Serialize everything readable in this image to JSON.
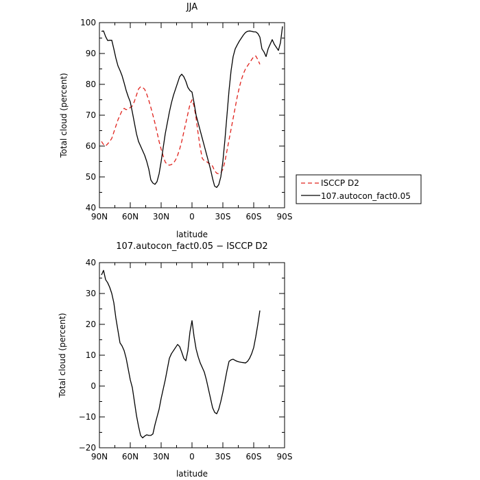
{
  "chart_data": [
    {
      "type": "line",
      "title": "JJA",
      "xlabel": "latitude",
      "ylabel": "Total cloud (percent)",
      "xlim": [
        90,
        -90
      ],
      "ylim": [
        40,
        100
      ],
      "x_tick_values": [
        90,
        60,
        30,
        0,
        -30,
        -60,
        -90
      ],
      "x_tick_labels": [
        "90N",
        "60N",
        "30N",
        "0",
        "30S",
        "60S",
        "90S"
      ],
      "y_ticks": [
        40,
        50,
        60,
        70,
        80,
        90,
        100
      ],
      "grid": false,
      "legend_position": "right",
      "series": [
        {
          "name": "ISCCP D2",
          "color": "#e0201a",
          "dash": "dashed",
          "x": [
            88,
            86,
            84,
            82,
            80,
            78,
            76,
            74,
            72,
            70,
            68,
            66,
            64,
            62,
            60,
            58,
            56,
            54,
            52,
            50,
            48,
            46,
            44,
            42,
            40,
            38,
            36,
            34,
            32,
            30,
            28,
            26,
            24,
            22,
            20,
            18,
            16,
            14,
            12,
            10,
            8,
            6,
            4,
            2,
            0,
            -2,
            -4,
            -6,
            -8,
            -10,
            -12,
            -14,
            -16,
            -18,
            -20,
            -22,
            -24,
            -26,
            -28,
            -30,
            -32,
            -34,
            -36,
            -38,
            -40,
            -42,
            -44,
            -46,
            -48,
            -50,
            -52,
            -54,
            -56,
            -58,
            -60,
            -62,
            -64,
            -66
          ],
          "y": [
            61.5,
            60.5,
            60,
            60.7,
            61.5,
            62.5,
            64.5,
            66.5,
            68.5,
            70,
            71.5,
            72.2,
            71.8,
            72,
            72.5,
            73,
            74.5,
            76.5,
            78.5,
            79.2,
            79,
            78.4,
            76.8,
            74.8,
            72.5,
            70,
            67.4,
            64.5,
            61.5,
            59,
            56.8,
            54.8,
            54,
            53.8,
            54,
            54.5,
            55.5,
            57,
            59,
            61.5,
            64.5,
            67.5,
            70.5,
            73.5,
            75,
            73,
            69,
            64,
            59.5,
            56,
            55.2,
            55,
            54.5,
            54.2,
            53.5,
            52,
            51.2,
            51,
            51.3,
            52.5,
            55,
            58.5,
            62,
            65.5,
            69,
            72.5,
            76,
            79,
            81.5,
            83.5,
            85,
            86,
            87,
            88,
            89,
            89.2,
            88,
            86.5
          ]
        },
        {
          "name": "107.autocon_fact0.05",
          "color": "#000000",
          "dash": "solid",
          "x": [
            88,
            86,
            84,
            82,
            80,
            78,
            76,
            74,
            72,
            70,
            68,
            66,
            64,
            62,
            60,
            58,
            56,
            54,
            52,
            50,
            48,
            46,
            44,
            42,
            40,
            38,
            36,
            34,
            32,
            30,
            28,
            26,
            24,
            22,
            20,
            18,
            16,
            14,
            12,
            10,
            8,
            6,
            4,
            2,
            0,
            -2,
            -4,
            -6,
            -8,
            -10,
            -12,
            -14,
            -16,
            -18,
            -20,
            -22,
            -24,
            -26,
            -28,
            -30,
            -32,
            -34,
            -36,
            -38,
            -40,
            -42,
            -44,
            -46,
            -48,
            -50,
            -52,
            -54,
            -56,
            -58,
            -60,
            -62,
            -64,
            -66,
            -68,
            -70,
            -72,
            -74,
            -76,
            -78,
            -80,
            -82,
            -84,
            -86,
            -88
          ],
          "y": [
            97.2,
            97.3,
            95.5,
            94.2,
            94.3,
            94.3,
            91.5,
            88.5,
            86,
            84.5,
            82.8,
            80.5,
            78,
            76,
            74.3,
            71,
            67.5,
            64,
            61.5,
            60,
            58.5,
            57,
            55,
            52.5,
            49,
            48,
            47.6,
            48.5,
            51,
            55,
            59.5,
            64,
            67.5,
            71,
            74,
            76.5,
            78.5,
            80.5,
            82.5,
            83.3,
            82.5,
            81,
            79,
            78,
            77.5,
            74,
            70,
            67.5,
            65,
            62.5,
            60,
            57.5,
            55,
            52.5,
            49.5,
            47,
            46.6,
            47.5,
            50,
            55,
            62,
            70,
            78,
            84.5,
            89,
            91.5,
            92.8,
            94,
            95,
            96,
            96.8,
            97.2,
            97.3,
            97.2,
            97,
            97,
            96.5,
            95.3,
            91.5,
            90.5,
            89,
            91.5,
            93,
            94.5,
            93,
            92,
            91,
            93.5,
            98.8
          ]
        }
      ]
    },
    {
      "type": "line",
      "title": "107.autocon_fact0.05 − ISCCP D2",
      "xlabel": "latitude",
      "ylabel": "Total cloud (percent)",
      "xlim": [
        90,
        -90
      ],
      "ylim": [
        -20,
        40
      ],
      "x_tick_values": [
        90,
        60,
        30,
        0,
        -30,
        -60,
        -90
      ],
      "x_tick_labels": [
        "90N",
        "60N",
        "30N",
        "0",
        "30S",
        "60S",
        "90S"
      ],
      "y_ticks": [
        -20,
        -10,
        0,
        10,
        20,
        30,
        40
      ],
      "grid": false,
      "series": [
        {
          "color": "#000000",
          "dash": "solid",
          "x": [
            88,
            86,
            84,
            82,
            80,
            78,
            76,
            74,
            72,
            70,
            68,
            66,
            64,
            62,
            60,
            58,
            56,
            54,
            52,
            50,
            48,
            46,
            44,
            42,
            40,
            38,
            36,
            34,
            32,
            30,
            28,
            26,
            24,
            22,
            20,
            18,
            16,
            14,
            12,
            10,
            8,
            6,
            4,
            2,
            0,
            -2,
            -4,
            -6,
            -8,
            -10,
            -12,
            -14,
            -16,
            -18,
            -20,
            -22,
            -24,
            -26,
            -28,
            -30,
            -32,
            -34,
            -36,
            -38,
            -40,
            -42,
            -44,
            -46,
            -48,
            -50,
            -52,
            -54,
            -56,
            -58,
            -60,
            -62,
            -64,
            -66
          ],
          "y": [
            36,
            37.5,
            34.5,
            33.5,
            32,
            30,
            27,
            22,
            18,
            14,
            13,
            11.5,
            9,
            5.5,
            2,
            -0.5,
            -5,
            -9.5,
            -13,
            -16,
            -16.8,
            -16.2,
            -15.8,
            -16,
            -16,
            -15.5,
            -12.5,
            -10,
            -7.5,
            -4,
            -1,
            2,
            5.5,
            9,
            10.5,
            11.5,
            12.5,
            13.5,
            12.8,
            11,
            9,
            8.2,
            11.5,
            17.5,
            21.2,
            16,
            12,
            9.5,
            7.5,
            6,
            4.5,
            2,
            -1,
            -4,
            -7,
            -8.5,
            -9,
            -7.5,
            -5,
            -2,
            1.5,
            5,
            8,
            8.5,
            8.7,
            8.3,
            8,
            7.8,
            7.7,
            7.6,
            7.5,
            8,
            9,
            10.5,
            12.5,
            16,
            20,
            24.5
          ]
        }
      ]
    }
  ]
}
